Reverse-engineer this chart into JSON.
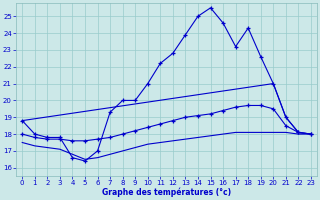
{
  "xlabel": "Graphe des températures (°c)",
  "x_ticks": [
    0,
    1,
    2,
    3,
    4,
    5,
    6,
    7,
    8,
    9,
    10,
    11,
    12,
    13,
    14,
    15,
    16,
    17,
    18,
    19,
    20,
    21,
    22,
    23
  ],
  "ylim": [
    15.5,
    25.8
  ],
  "yticks": [
    16,
    17,
    18,
    19,
    20,
    21,
    22,
    23,
    24,
    25
  ],
  "background_color": "#cce8e8",
  "grid_color": "#99cccc",
  "line_color": "#0000cc",
  "series": {
    "main": {
      "x": [
        0,
        1,
        2,
        3,
        4,
        5,
        6,
        7,
        8,
        9,
        10,
        11,
        12,
        13,
        14,
        15,
        16,
        17,
        18,
        19,
        20,
        21,
        22,
        23
      ],
      "y": [
        18.8,
        18.0,
        17.8,
        17.8,
        16.6,
        16.4,
        17.0,
        19.3,
        20.0,
        20.0,
        21.0,
        22.2,
        22.8,
        23.9,
        25.0,
        25.5,
        24.6,
        23.2,
        24.3,
        22.6,
        21.0,
        19.0,
        18.1,
        18.0
      ],
      "marker": true
    },
    "upper_diag": {
      "x": [
        0,
        20,
        21,
        22,
        23
      ],
      "y": [
        18.8,
        21.0,
        19.0,
        18.1,
        18.0
      ],
      "marker": false
    },
    "mid_diag": {
      "x": [
        0,
        1,
        2,
        3,
        4,
        5,
        6,
        7,
        8,
        9,
        10,
        11,
        12,
        13,
        14,
        15,
        16,
        17,
        18,
        19,
        20,
        21,
        22,
        23
      ],
      "y": [
        18.0,
        17.8,
        17.7,
        17.7,
        17.6,
        17.6,
        17.7,
        17.8,
        18.0,
        18.2,
        18.4,
        18.6,
        18.8,
        19.0,
        19.1,
        19.2,
        19.4,
        19.6,
        19.7,
        19.7,
        19.5,
        18.5,
        18.1,
        18.0
      ],
      "marker": true
    },
    "lower_diag": {
      "x": [
        0,
        1,
        2,
        3,
        4,
        5,
        6,
        7,
        8,
        9,
        10,
        11,
        12,
        13,
        14,
        15,
        16,
        17,
        18,
        19,
        20,
        21,
        22,
        23
      ],
      "y": [
        17.5,
        17.3,
        17.2,
        17.1,
        16.8,
        16.5,
        16.6,
        16.8,
        17.0,
        17.2,
        17.4,
        17.5,
        17.6,
        17.7,
        17.8,
        17.9,
        18.0,
        18.1,
        18.1,
        18.1,
        18.1,
        18.1,
        18.0,
        18.0
      ],
      "marker": false
    }
  }
}
